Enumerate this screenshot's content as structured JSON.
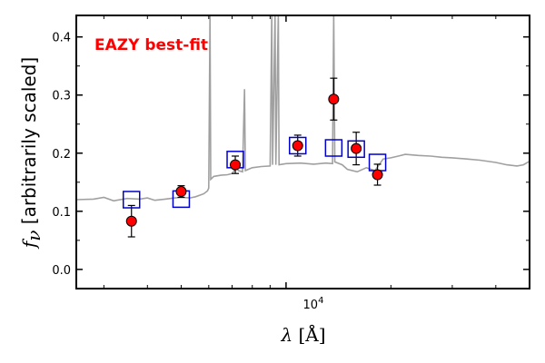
{
  "chart_data": {
    "type": "scatter",
    "title": "",
    "xlabel": "λ [Å]",
    "ylabel": "f_ν [arbitrarily scaled]",
    "ylabel_sym": "f",
    "ylabel_sub": "ν",
    "ylabel_text": "[arbitrarily scaled]",
    "xlabel_sym": "λ",
    "xlabel_unit": "[Å]",
    "xscale": "log",
    "xlim": [
      2500,
      50000
    ],
    "ylim": [
      -0.033,
      0.437
    ],
    "yticks": [
      0.0,
      0.1,
      0.2,
      0.3,
      0.4
    ],
    "ytick_labels": [
      "0.0",
      "0.1",
      "0.2",
      "0.3",
      "0.4"
    ],
    "xtick_label_base": "10",
    "xtick_label_exp": "4",
    "xtick_label_value": 10000,
    "grid": false,
    "annotation": {
      "text": "EAZY best-fit",
      "color": "#ff0000",
      "position": "top-left"
    },
    "colors": {
      "template": "#a0a0a0",
      "model": "#0000cc",
      "observed": "#ff0000"
    },
    "template_spectrum": {
      "name": "",
      "points": [
        [
          2500,
          0.12
        ],
        [
          2800,
          0.121
        ],
        [
          3000,
          0.124
        ],
        [
          3200,
          0.118
        ],
        [
          3500,
          0.122
        ],
        [
          3800,
          0.121
        ],
        [
          4000,
          0.123
        ],
        [
          4200,
          0.119
        ],
        [
          4500,
          0.121
        ],
        [
          4800,
          0.123
        ],
        [
          5000,
          0.124
        ],
        [
          5300,
          0.123
        ],
        [
          5500,
          0.125
        ],
        [
          5800,
          0.13
        ],
        [
          5950,
          0.135
        ],
        [
          6000,
          0.14
        ],
        [
          6050,
          0.44
        ],
        [
          6080,
          0.155
        ],
        [
          6200,
          0.16
        ],
        [
          6500,
          0.162
        ],
        [
          6800,
          0.163
        ],
        [
          7000,
          0.165
        ],
        [
          7200,
          0.175
        ],
        [
          7300,
          0.17
        ],
        [
          7500,
          0.168
        ],
        [
          7600,
          0.31
        ],
        [
          7640,
          0.17
        ],
        [
          8000,
          0.175
        ],
        [
          8500,
          0.177
        ],
        [
          9000,
          0.178
        ],
        [
          9100,
          0.44
        ],
        [
          9150,
          0.18
        ],
        [
          9300,
          0.44
        ],
        [
          9350,
          0.18
        ],
        [
          9500,
          0.44
        ],
        [
          9550,
          0.18
        ],
        [
          10000,
          0.182
        ],
        [
          11000,
          0.183
        ],
        [
          12000,
          0.181
        ],
        [
          13000,
          0.183
        ],
        [
          13600,
          0.182
        ],
        [
          13700,
          0.44
        ],
        [
          13800,
          0.185
        ],
        [
          14500,
          0.18
        ],
        [
          15000,
          0.172
        ],
        [
          16000,
          0.168
        ],
        [
          17000,
          0.175
        ],
        [
          18000,
          0.17
        ],
        [
          19000,
          0.19
        ],
        [
          20000,
          0.192
        ],
        [
          21000,
          0.195
        ],
        [
          22000,
          0.198
        ],
        [
          24000,
          0.196
        ],
        [
          26000,
          0.195
        ],
        [
          28000,
          0.193
        ],
        [
          30000,
          0.192
        ],
        [
          33000,
          0.19
        ],
        [
          36000,
          0.188
        ],
        [
          40000,
          0.184
        ],
        [
          43000,
          0.18
        ],
        [
          46000,
          0.178
        ],
        [
          48000,
          0.18
        ],
        [
          50000,
          0.186
        ]
      ]
    },
    "model_photometry": [
      {
        "x": 3600,
        "y": 0.12
      },
      {
        "x": 5000,
        "y": 0.121
      },
      {
        "x": 7150,
        "y": 0.189
      },
      {
        "x": 10800,
        "y": 0.213
      },
      {
        "x": 13700,
        "y": 0.209
      },
      {
        "x": 15900,
        "y": 0.207
      },
      {
        "x": 18300,
        "y": 0.184
      }
    ],
    "observed_photometry": [
      {
        "x": 3600,
        "y": 0.083,
        "yerr": 0.027
      },
      {
        "x": 5000,
        "y": 0.134,
        "yerr": 0.01
      },
      {
        "x": 7150,
        "y": 0.18,
        "yerr": 0.015
      },
      {
        "x": 10800,
        "y": 0.213,
        "yerr": 0.018
      },
      {
        "x": 13700,
        "y": 0.293,
        "yerr": 0.036
      },
      {
        "x": 15900,
        "y": 0.208,
        "yerr": 0.028
      },
      {
        "x": 18300,
        "y": 0.163,
        "yerr": 0.018
      }
    ]
  }
}
